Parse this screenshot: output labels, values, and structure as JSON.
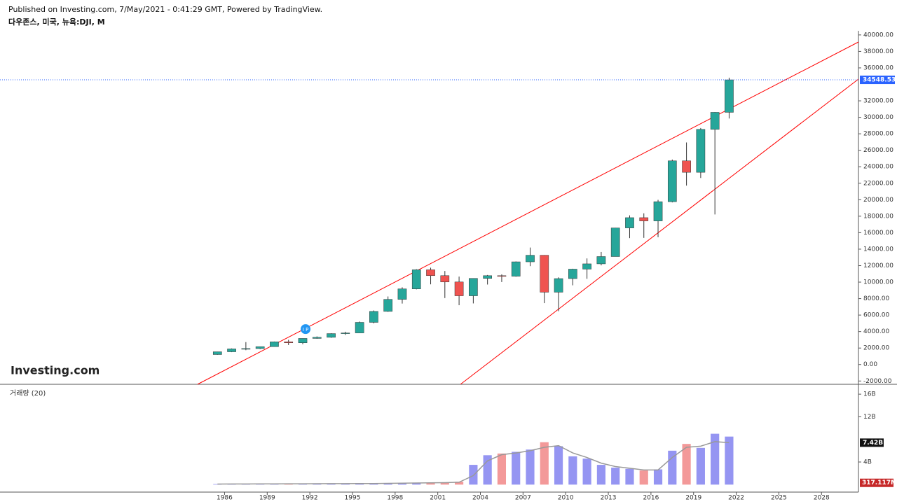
{
  "header": {
    "published": "Published on Investing.com, 7/May/2021 - 0:41:29 GMT, Powered by TradingView.",
    "symbol": "다우존스, 미국, 뉴욕:DJI, M",
    "logo": "Investing.com"
  },
  "chart_data": {
    "type": "candlestick",
    "x": [
      1985,
      1986,
      1987,
      1988,
      1989,
      1990,
      1991,
      1992,
      1993,
      1994,
      1995,
      1996,
      1997,
      1998,
      1999,
      2000,
      2001,
      2002,
      2003,
      2004,
      2005,
      2006,
      2007,
      2008,
      2009,
      2010,
      2011,
      2012,
      2013,
      2014,
      2015,
      2016,
      2017,
      2018,
      2019,
      2020,
      2021
    ],
    "open": [
      1212,
      1547,
      1896,
      1939,
      2169,
      2753,
      2634,
      3169,
      3301,
      3754,
      3834,
      5117,
      6448,
      7908,
      9181,
      11497,
      10787,
      10021,
      8341,
      10453,
      10783,
      10717,
      12463,
      13264,
      8776,
      10428,
      11577,
      12217,
      13104,
      16576,
      17823,
      17425,
      19762,
      24719,
      23327,
      28538,
      30606
    ],
    "high": [
      1553,
      1956,
      2722,
      2184,
      2791,
      3000,
      3169,
      3413,
      3794,
      3978,
      5216,
      6561,
      8259,
      9374,
      11568,
      11750,
      11350,
      10673,
      10453,
      10868,
      10940,
      12510,
      14198,
      13279,
      10580,
      11625,
      12876,
      13661,
      16588,
      18103,
      18351,
      19987,
      24876,
      26951,
      28701,
      30637,
      34811
    ],
    "low": [
      1185,
      1502,
      1738,
      1879,
      2145,
      2365,
      2470,
      3137,
      3242,
      3593,
      3832,
      5000,
      6391,
      7400,
      9121,
      9731,
      8062,
      7197,
      7416,
      9708,
      10012,
      10661,
      11939,
      7449,
      6470,
      9614,
      10404,
      12035,
      13104,
      15340,
      15370,
      15450,
      19677,
      21712,
      22638,
      18213,
      29856
    ],
    "close": [
      1547,
      1896,
      1939,
      2169,
      2753,
      2634,
      3169,
      3301,
      3754,
      3834,
      5117,
      6448,
      7908,
      9181,
      11497,
      10787,
      10021,
      8341,
      10453,
      10783,
      10717,
      12463,
      13264,
      8776,
      10428,
      11577,
      12217,
      13104,
      16576,
      17823,
      17425,
      19762,
      24719,
      23327,
      28538,
      30606,
      34548.53
    ],
    "up_color": "#26a69a",
    "down_color": "#ef5350",
    "xlim": [
      1970.2,
      2030.6
    ],
    "xticks": [
      1986,
      1989,
      1992,
      1995,
      1998,
      2001,
      2004,
      2007,
      2010,
      2013,
      2016,
      2019,
      2022,
      2025,
      2028
    ],
    "ylim": [
      -2400,
      40500
    ],
    "yticks": [
      {
        "value": -2000,
        "label": "-2000.00"
      },
      {
        "value": 0,
        "label": "0.00"
      },
      {
        "value": 2000,
        "label": "2000.00"
      },
      {
        "value": 4000,
        "label": "4000.00"
      },
      {
        "value": 6000,
        "label": "6000.00"
      },
      {
        "value": 8000,
        "label": "8000.00"
      },
      {
        "value": 10000,
        "label": "10000.00"
      },
      {
        "value": 12000,
        "label": "12000.00"
      },
      {
        "value": 14000,
        "label": "14000.00"
      },
      {
        "value": 16000,
        "label": "16000.00"
      },
      {
        "value": 18000,
        "label": "18000.00"
      },
      {
        "value": 20000,
        "label": "20000.00"
      },
      {
        "value": 22000,
        "label": "22000.00"
      },
      {
        "value": 24000,
        "label": "24000.00"
      },
      {
        "value": 26000,
        "label": "26000.00"
      },
      {
        "value": 28000,
        "label": "28000.00"
      },
      {
        "value": 30000,
        "label": "30000.00"
      },
      {
        "value": 32000,
        "label": "32000.00"
      },
      {
        "value": 36000,
        "label": "36000.00"
      },
      {
        "value": 38000,
        "label": "38000.00"
      },
      {
        "value": 40000,
        "label": "40000.00"
      }
    ],
    "last_price": 34548.53,
    "last_price_color": "#2962ff",
    "trendlines": [
      {
        "x": [
          1984.1,
          2030.6
        ],
        "y": [
          -2400,
          39141
        ]
      },
      {
        "x": [
          2002.6,
          2030.6
        ],
        "y": [
          -2400,
          34639
        ]
      }
    ],
    "trendline_color": "#ff0000",
    "marker": {
      "x": 1991.7,
      "y": 4300,
      "text": "I P"
    },
    "volume": {
      "type": "bar",
      "title": "거래량 (20)",
      "values": [
        0.1,
        0.12,
        0.15,
        0.13,
        0.14,
        0.15,
        0.16,
        0.17,
        0.18,
        0.19,
        0.2,
        0.22,
        0.25,
        0.28,
        0.3,
        0.35,
        0.4,
        0.5,
        3.5,
        5.2,
        5.5,
        5.8,
        6.2,
        7.5,
        6.8,
        5.0,
        4.6,
        3.5,
        3.0,
        2.8,
        2.5,
        2.7,
        6.0,
        7.2,
        6.5,
        9.0,
        8.5
      ],
      "ma": [
        0.1,
        0.11,
        0.12,
        0.13,
        0.13,
        0.14,
        0.15,
        0.16,
        0.17,
        0.18,
        0.19,
        0.2,
        0.22,
        0.25,
        0.28,
        0.31,
        0.35,
        0.42,
        1.6,
        4.2,
        5.3,
        5.6,
        6.0,
        6.6,
        6.9,
        5.6,
        4.8,
        3.8,
        3.2,
        2.9,
        2.6,
        2.6,
        4.8,
        6.6,
        6.8,
        7.6,
        7.42
      ],
      "ma_label": "7.42B",
      "current": {
        "value": 0.317117,
        "label": "317.117M"
      },
      "up_color": "#7b7bef",
      "down_color": "#f08080",
      "ma_color": "#999999",
      "ylim": [
        -1.2,
        17.5
      ],
      "yticks": [
        {
          "value": 4,
          "label": "4B"
        },
        {
          "value": 12,
          "label": "12B"
        },
        {
          "value": 16,
          "label": "16B"
        }
      ]
    }
  }
}
